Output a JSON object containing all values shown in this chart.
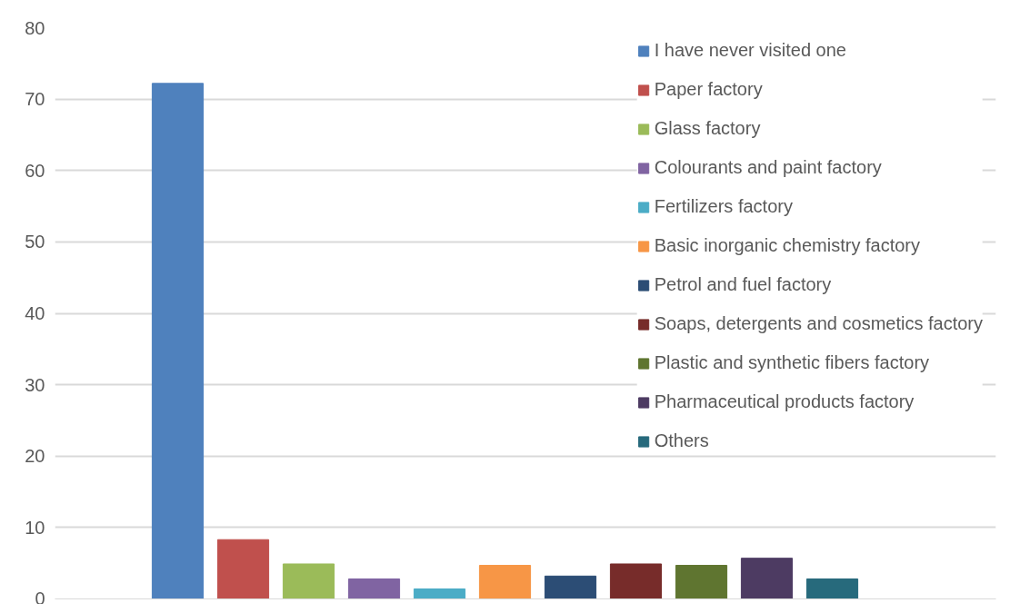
{
  "chart_data": {
    "type": "bar",
    "categories": [
      null
    ],
    "series": [
      {
        "name": "I have never visited one",
        "color": "#4f81bd",
        "values": [
          72.2
        ]
      },
      {
        "name": "Paper factory",
        "color": "#c0504d",
        "values": [
          8.3
        ]
      },
      {
        "name": "Glass factory",
        "color": "#9bbb59",
        "values": [
          4.9
        ]
      },
      {
        "name": "Colourants and paint factory",
        "color": "#8064a2",
        "values": [
          2.8
        ]
      },
      {
        "name": "Fertilizers factory",
        "color": "#4bacc6",
        "values": [
          1.4
        ]
      },
      {
        "name": "Basic inorganic chemistry factory",
        "color": "#f79646",
        "values": [
          4.7
        ]
      },
      {
        "name": "Petrol and fuel factory",
        "color": "#2c4d75",
        "values": [
          3.2
        ]
      },
      {
        "name": "Soaps, detergents and cosmetics factory",
        "color": "#772c2a",
        "values": [
          4.9
        ]
      },
      {
        "name": "Plastic and synthetic fibers factory",
        "color": "#5f7530",
        "values": [
          4.7
        ]
      },
      {
        "name": "Pharmaceutical products factory",
        "color": "#4d3b62",
        "values": [
          5.7
        ]
      },
      {
        "name": "Others",
        "color": "#276a7c",
        "values": [
          2.8
        ]
      }
    ],
    "ylim": [
      0,
      80
    ],
    "yticks": [
      0,
      10,
      20,
      30,
      40,
      50,
      60,
      70,
      80
    ],
    "grid": "y",
    "legend": "top right",
    "tick_labels": "y"
  }
}
